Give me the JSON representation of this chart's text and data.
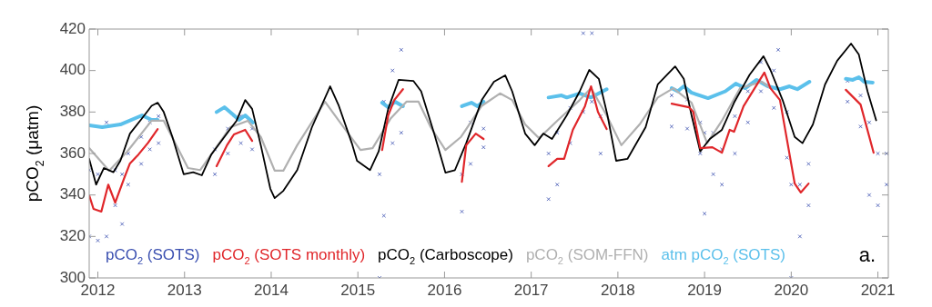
{
  "chart_data": {
    "type": "line",
    "ylabel": "pCO$_{2}$ (μatm)",
    "xlim": [
      2011.9,
      2021.12
    ],
    "xticks": [
      2012,
      2013,
      2014,
      2015,
      2016,
      2017,
      2018,
      2019,
      2020,
      2021
    ],
    "ylim": [
      300,
      420
    ],
    "yticks": [
      300,
      320,
      340,
      360,
      380,
      400,
      420
    ],
    "grid": false,
    "legend": "bottom left",
    "line_style": "solid",
    "marker": "none",
    "annotations": [
      "a."
    ],
    "series": [
      {
        "name": "pCO$_{2}$ (SOTS)",
        "type": "scatter",
        "marker": "cross",
        "color": "#3a4fb0",
        "x": [
          2011.9,
          2011.9,
          2012.0,
          2012.0,
          2012.1,
          2012.1,
          2012.2,
          2012.2,
          2012.28,
          2012.28,
          2012.35,
          2012.35,
          2012.5,
          2012.5,
          2012.6,
          2012.6,
          2012.7,
          2012.7,
          2013.35,
          2013.35,
          2013.5,
          2013.5,
          2013.65,
          2013.65,
          2013.78,
          2013.78,
          2015.25,
          2015.25,
          2015.3,
          2015.3,
          2015.4,
          2015.4,
          2015.5,
          2015.5,
          2016.2,
          2016.2,
          2016.3,
          2016.3,
          2016.45,
          2016.45,
          2017.2,
          2017.2,
          2017.3,
          2017.3,
          2017.45,
          2017.45,
          2017.6,
          2017.6,
          2017.7,
          2017.7,
          2017.8,
          2017.8,
          2018.62,
          2018.62,
          2018.8,
          2018.8,
          2018.95,
          2018.95,
          2019.0,
          2019.0,
          2019.1,
          2019.1,
          2019.2,
          2019.2,
          2019.35,
          2019.35,
          2019.5,
          2019.5,
          2019.65,
          2019.65,
          2019.8,
          2019.8,
          2019.85,
          2019.95,
          2019.95,
          2020.0,
          2020.0,
          2020.1,
          2020.1,
          2020.2,
          2020.2,
          2020.65,
          2020.65,
          2020.8,
          2020.8,
          2020.9,
          2020.9,
          2021.0,
          2021.0,
          2021.1,
          2021.1
        ],
        "values": [
          320,
          352,
          318,
          350,
          320,
          375,
          335,
          352,
          326,
          350,
          345,
          360,
          355,
          368,
          362,
          375,
          365,
          378,
          350,
          362,
          360,
          372,
          365,
          378,
          362,
          372,
          300,
          350,
          330,
          385,
          365,
          400,
          370,
          410,
          332,
          350,
          355,
          375,
          363,
          372,
          338,
          360,
          345,
          370,
          365,
          382,
          380,
          418,
          385,
          418,
          360,
          378,
          373,
          388,
          372,
          386,
          360,
          375,
          331,
          370,
          350,
          370,
          345,
          362,
          360,
          378,
          375,
          390,
          390,
          404,
          382,
          400,
          410,
          358,
          380,
          300,
          345,
          320,
          345,
          335,
          355,
          385,
          395,
          373,
          388,
          340,
          375,
          335,
          360,
          345,
          360
        ]
      },
      {
        "name": "pCO$_{2}$ (SOTS monthly)",
        "color": "#e0262a",
        "x": [
          2011.9,
          2011.95,
          2012.04,
          2012.12,
          2012.2,
          2012.3,
          2012.37,
          2012.47,
          2012.58,
          2012.69,
          2013.0,
          2013.37,
          2013.49,
          2013.57,
          2013.7,
          2013.78,
          2014.5,
          2015.28,
          2015.35,
          2015.42,
          2015.52,
          2015.9,
          2016.2,
          2016.25,
          2016.36,
          2016.45,
          2016.8,
          2017.2,
          2017.3,
          2017.38,
          2017.48,
          2017.62,
          2017.69,
          2017.77,
          2017.87,
          2018.3,
          2018.62,
          2018.82,
          2018.87,
          2018.95,
          2019.09,
          2019.2,
          2019.29,
          2019.34,
          2019.45,
          2019.69,
          2019.76,
          2019.87,
          2020.04,
          2020.11,
          2020.2,
          2020.4,
          2020.63,
          2020.8,
          2020.95
        ],
        "values": [
          339.8,
          333.3,
          332,
          345,
          336.3,
          347.7,
          355.2,
          359.6,
          365.2,
          371.8,
          null,
          353.9,
          364,
          369.2,
          371.4,
          366.1,
          null,
          361.7,
          378.4,
          385.8,
          391,
          null,
          346.4,
          364,
          369.6,
          367,
          null,
          353.9,
          357.4,
          357.4,
          371.4,
          382.8,
          392.4,
          380,
          371.8,
          null,
          384,
          382.3,
          380,
          362.6,
          363,
          360.4,
          371.4,
          370.5,
          382.8,
          399,
          391.5,
          385.8,
          345.5,
          341.2,
          345.5,
          null,
          390.7,
          383.6,
          360.4
        ]
      },
      {
        "name": "pCO$_{2}$ (Carboscope)",
        "color": "#000000",
        "x": [
          2011.9,
          2011.98,
          2012.07,
          2012.18,
          2012.26,
          2012.37,
          2012.51,
          2012.62,
          2012.69,
          2012.76,
          2012.86,
          2012.99,
          2013.1,
          2013.2,
          2013.31,
          2013.46,
          2013.6,
          2013.7,
          2013.78,
          2013.88,
          2013.99,
          2014.04,
          2014.14,
          2014.3,
          2014.47,
          2014.68,
          2014.78,
          2014.93,
          2014.99,
          2015.14,
          2015.24,
          2015.35,
          2015.47,
          2015.64,
          2015.73,
          2015.88,
          2016.01,
          2016.12,
          2016.25,
          2016.43,
          2016.57,
          2016.7,
          2016.78,
          2016.93,
          2017.04,
          2017.14,
          2017.24,
          2017.41,
          2017.56,
          2017.67,
          2017.78,
          2017.88,
          2017.98,
          2018.11,
          2018.32,
          2018.46,
          2018.66,
          2018.76,
          2018.85,
          2018.95,
          2019.06,
          2019.2,
          2019.34,
          2019.52,
          2019.68,
          2019.76,
          2019.9,
          2020.04,
          2020.13,
          2020.25,
          2020.39,
          2020.53,
          2020.69,
          2020.78,
          2020.88,
          2020.98
        ],
        "values": [
          357.4,
          345,
          353,
          351,
          356.5,
          369.6,
          377,
          383,
          384.5,
          380,
          368,
          350,
          351,
          349.5,
          359.6,
          368,
          375.8,
          385.8,
          381.5,
          364,
          343,
          338.5,
          342,
          352,
          372.7,
          392.4,
          383,
          365,
          356.5,
          352,
          361,
          381.5,
          395.5,
          395,
          390,
          369.6,
          350.8,
          352,
          365,
          385.8,
          394.6,
          397.7,
          390,
          369.6,
          364,
          369.6,
          367,
          378.4,
          390,
          400.3,
          396,
          378.4,
          356.5,
          357.4,
          372.7,
          393.3,
          402,
          396,
          378.4,
          361,
          367,
          371.4,
          384.5,
          398,
          406.9,
          400.3,
          385.8,
          368,
          365,
          374,
          393.3,
          404.7,
          413,
          407.7,
          390,
          376
        ]
      },
      {
        "name": "pCO$_{2}$ (SOM-FFN)",
        "color": "#b0b0b0",
        "x": [
          2011.9,
          2012.13,
          2012.34,
          2012.62,
          2012.76,
          2013.04,
          2013.18,
          2013.53,
          2013.73,
          2013.88,
          2014.04,
          2014.14,
          2014.3,
          2014.62,
          2014.78,
          2015.03,
          2015.17,
          2015.38,
          2015.56,
          2015.7,
          2015.84,
          2016.01,
          2016.19,
          2016.43,
          2016.64,
          2016.78,
          2016.93,
          2017.09,
          2017.3,
          2017.56,
          2017.69,
          2017.87,
          2018.04,
          2018.25,
          2018.46,
          2018.64,
          2018.85,
          2019.03,
          2019.2,
          2019.41,
          2019.66,
          2019.76
        ],
        "values": [
          362.6,
          351.7,
          361,
          375.8,
          375.8,
          353,
          352,
          372.7,
          375.8,
          368,
          351.7,
          351.7,
          364,
          385,
          375.8,
          361.7,
          362.6,
          377,
          385,
          385,
          372.7,
          361.7,
          368,
          383,
          389,
          385.8,
          374,
          367.4,
          375.8,
          385.8,
          391.5,
          378.4,
          364,
          374,
          387,
          391.5,
          384.5,
          365,
          375.8,
          391.5,
          394.6,
          391.5
        ]
      },
      {
        "name": "atm pCO$_{2}$ (SOTS)",
        "color": "#5bc0eb",
        "x": [
          2011.9,
          2012.05,
          2012.26,
          2012.51,
          2012.62,
          2012.69,
          2013.0,
          2013.37,
          2013.46,
          2013.63,
          2013.7,
          2013.79,
          2014.5,
          2015.28,
          2015.35,
          2015.43,
          2015.52,
          2015.9,
          2016.2,
          2016.31,
          2016.38,
          2016.45,
          2016.8,
          2017.2,
          2017.35,
          2017.41,
          2017.56,
          2017.69,
          2017.87,
          2018.3,
          2018.62,
          2018.69,
          2018.76,
          2018.85,
          2019.04,
          2019.24,
          2019.36,
          2019.47,
          2019.6,
          2019.73,
          2019.87,
          2019.98,
          2020.07,
          2020.21,
          2020.4,
          2020.63,
          2020.71,
          2020.78,
          2020.84,
          2020.94
        ],
        "values": [
          373.6,
          372.7,
          374,
          378.4,
          376.2,
          376.2,
          null,
          380,
          382.3,
          376.2,
          378.4,
          374.9,
          null,
          384.5,
          382.3,
          385,
          382.8,
          null,
          382.8,
          384.5,
          382.8,
          385,
          null,
          387,
          388,
          387,
          389,
          387,
          391,
          null,
          391.5,
          390,
          392.4,
          389.3,
          386.7,
          390,
          393.7,
          391.5,
          395.5,
          392.4,
          391,
          392.4,
          391,
          394.6,
          null,
          396,
          395.5,
          396.8,
          394.6,
          394.2
        ]
      }
    ]
  }
}
